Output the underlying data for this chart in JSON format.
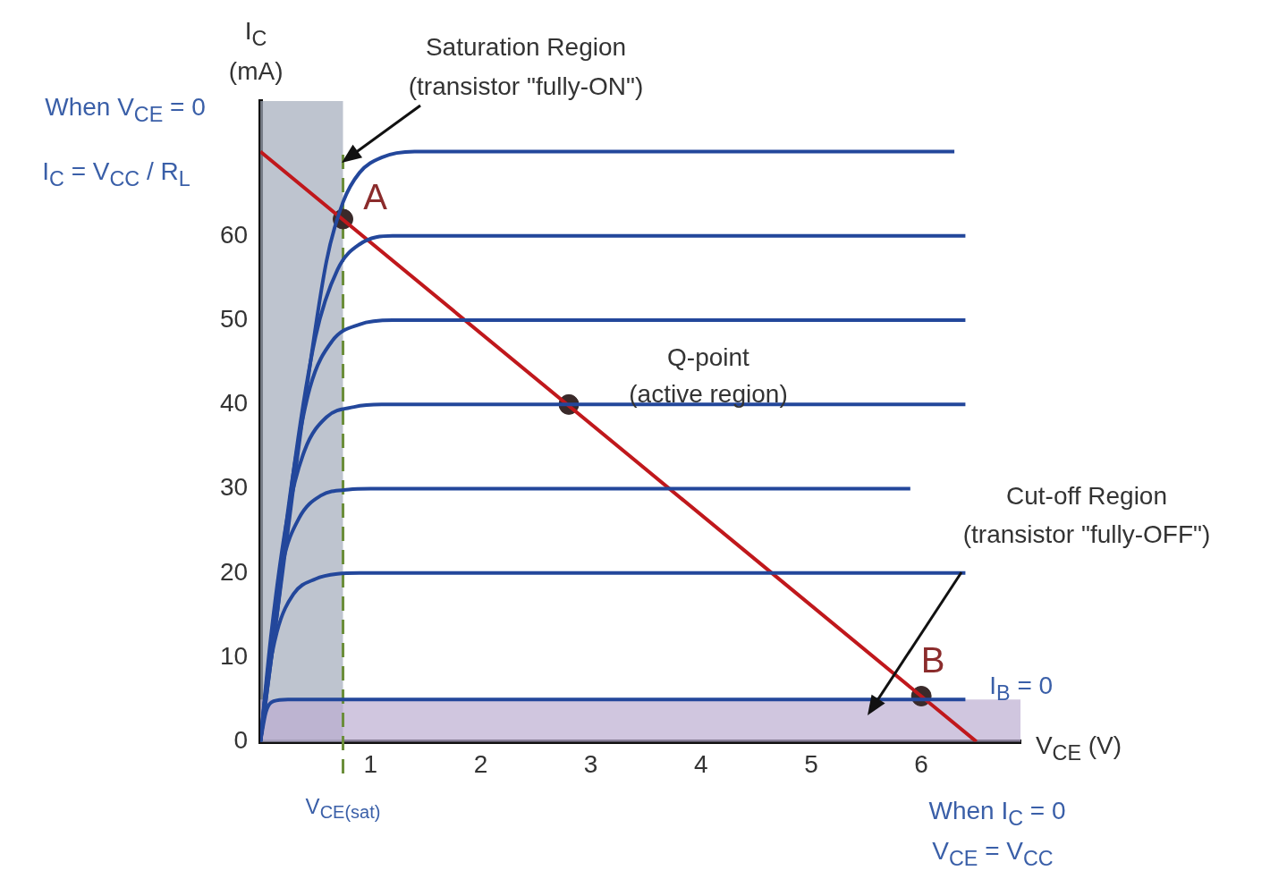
{
  "chart_data": {
    "type": "line",
    "xlabel": "V$_{CE}$ (V)",
    "ylabel": "I$_{C}$ (mA)",
    "xlim": [
      0,
      6.9
    ],
    "xticks": [
      1,
      2,
      3,
      4,
      5,
      6
    ],
    "ylim": [
      0,
      76
    ],
    "yticks": [
      0,
      10,
      20,
      30,
      40,
      50,
      60
    ],
    "grid": false,
    "legend": false,
    "marker": "none",
    "line_style": "solid",
    "series": [
      {
        "color": "#23479b",
        "x": [
          0,
          0.2,
          0.4,
          0.6,
          0.75,
          0.9,
          1.1,
          1.4,
          6.3
        ],
        "values": [
          0,
          20,
          40,
          57,
          64,
          67.5,
          69.3,
          70,
          70
        ]
      },
      {
        "color": "#23479b",
        "x": [
          0,
          0.15,
          0.3,
          0.5,
          0.7,
          0.9,
          1.2,
          6.4
        ],
        "values": [
          0,
          15,
          32,
          48,
          56,
          59,
          60,
          60
        ]
      },
      {
        "color": "#23479b",
        "x": [
          0,
          0.15,
          0.3,
          0.45,
          0.65,
          0.9,
          1.2,
          6.4
        ],
        "values": [
          0,
          17,
          32,
          42,
          47.5,
          49.5,
          50,
          50
        ]
      },
      {
        "color": "#23479b",
        "x": [
          0,
          0.1,
          0.25,
          0.4,
          0.6,
          0.85,
          1.1,
          6.4
        ],
        "values": [
          0,
          13,
          27,
          34.5,
          38.5,
          39.7,
          40,
          40
        ]
      },
      {
        "color": "#23479b",
        "x": [
          0,
          0.1,
          0.2,
          0.35,
          0.55,
          0.8,
          1.0,
          5.9
        ],
        "values": [
          0,
          12,
          21,
          26.5,
          29.2,
          29.9,
          30,
          30
        ]
      },
      {
        "color": "#23479b",
        "x": [
          0,
          0.05,
          0.15,
          0.3,
          0.5,
          0.7,
          0.9,
          6.4
        ],
        "values": [
          0,
          6,
          13,
          17.5,
          19.3,
          19.9,
          20,
          20
        ]
      },
      {
        "color": "#23479b",
        "x": [
          0,
          0.05,
          0.12,
          0.25,
          6.4
        ],
        "values": [
          0,
          3.5,
          4.8,
          5,
          5
        ]
      },
      {
        "color": "#c0181c",
        "x": [
          0,
          6.5
        ],
        "values": [
          70,
          0
        ]
      },
      {
        "type": "scatter",
        "marker": "circle",
        "color": "#3a2a2a",
        "x": [
          0.75,
          2.8,
          6.0
        ],
        "values": [
          62,
          40,
          5.4
        ]
      }
    ],
    "bands": [
      {
        "axis": "x",
        "from": 0,
        "to": 0.75,
        "color": "#a3abbb"
      },
      {
        "axis": "y",
        "from": 0,
        "to": 5,
        "color": "#bcaed2"
      }
    ],
    "ref_lines": [
      {
        "axis": "x",
        "value": 0.75,
        "label": "V$_{CE(sat)}$",
        "color": "#6b8e3a",
        "line_style": "dashed"
      }
    ],
    "annotations": [
      "Saturation Region",
      "(transistor \"fully-ON\")",
      {
        "text": "Q-point\n(active region)",
        "x": 2.8,
        "y": 40
      },
      {
        "text": "A",
        "x": 0.75,
        "y": 62
      },
      {
        "text": "B",
        "x": 6.0,
        "y": 5.4
      },
      {
        "text": "I$_{B}$ = 0",
        "x": 6.5,
        "y": 5
      },
      "Cut-off Region",
      "(transistor \"fully-OFF\")",
      "When V$_{CE}$ = 0",
      "I$_{C}$ = V$_{CC}$ / R$_{L}$",
      "When I$_{C}$ = 0",
      "V$_{CE}$ = V$_{CC}$"
    ]
  }
}
